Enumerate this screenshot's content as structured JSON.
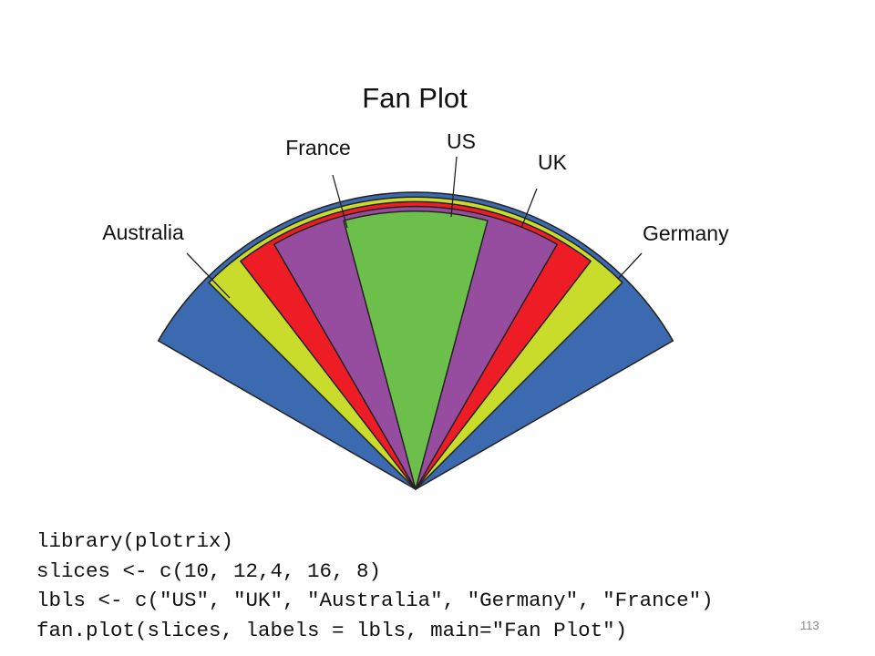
{
  "slide": {
    "code_lines": [
      "library(plotrix)",
      "slices <- c(10, 12,4, 16, 8)",
      "lbls <- c(\"US\", \"UK\", \"Australia\", \"Germany\", \"France\")",
      "fan.plot(slices, labels = lbls, main=\"Fan Plot\")"
    ],
    "page_number": "113"
  },
  "chart_data": {
    "type": "fan",
    "title": "Fan Plot",
    "categories": [
      "US",
      "UK",
      "Australia",
      "Germany",
      "France"
    ],
    "values": [
      10,
      12,
      4,
      16,
      8
    ],
    "colors": [
      "#ee1d25",
      "#c9dc2b",
      "#6cbf4a",
      "#3c6ab0",
      "#974d9f"
    ],
    "max_span_degrees": 120,
    "legend": "none"
  }
}
